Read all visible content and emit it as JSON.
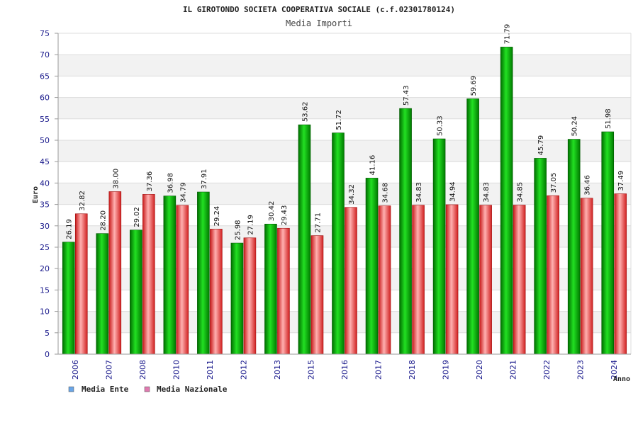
{
  "chart_data": {
    "type": "bar",
    "title": "IL GIROTONDO SOCIETA COOPERATIVA SOCIALE (c.f.02301780124)",
    "subtitle": "Media Importi",
    "xlabel": "Anno",
    "ylabel": "Euro",
    "ylim": [
      0,
      75
    ],
    "yticks": [
      0,
      5,
      10,
      15,
      20,
      25,
      30,
      35,
      40,
      45,
      50,
      55,
      60,
      65,
      70,
      75
    ],
    "grid": true,
    "legend_position": "bottom-left",
    "categories": [
      "2006",
      "2007",
      "2008",
      "2010",
      "2011",
      "2012",
      "2013",
      "2015",
      "2016",
      "2017",
      "2018",
      "2019",
      "2020",
      "2021",
      "2022",
      "2023",
      "2024"
    ],
    "series": [
      {
        "name": "Media Ente",
        "color": "#00b400",
        "legend_color": "#6aa6e8",
        "values": [
          26.19,
          28.2,
          29.02,
          36.98,
          37.91,
          25.98,
          30.42,
          53.62,
          51.72,
          41.16,
          57.43,
          50.33,
          59.69,
          71.79,
          45.79,
          50.24,
          51.98
        ],
        "labels": [
          "26.19",
          "28.20",
          "29.02",
          "36.98",
          "37.91",
          "25.98",
          "30.42",
          "53.62",
          "51.72",
          "41.16",
          "57.43",
          "50.33",
          "59.69",
          "71.79",
          "45.79",
          "50.24",
          "51.98"
        ]
      },
      {
        "name": "Media Nazionale",
        "color": "#e83a3a",
        "legend_color": "#e07ab0",
        "values": [
          32.82,
          38.0,
          37.36,
          34.79,
          29.24,
          27.19,
          29.43,
          27.71,
          34.32,
          34.68,
          34.83,
          34.94,
          34.83,
          34.85,
          37.05,
          36.46,
          37.49
        ],
        "labels": [
          "32.82",
          "38.00",
          "37.36",
          "34.79",
          "29.24",
          "27.19",
          "29.43",
          "27.71",
          "34.32",
          "34.68",
          "34.83",
          "34.94",
          "34.83",
          "34.85",
          "37.05",
          "36.46",
          "37.49"
        ]
      }
    ]
  }
}
